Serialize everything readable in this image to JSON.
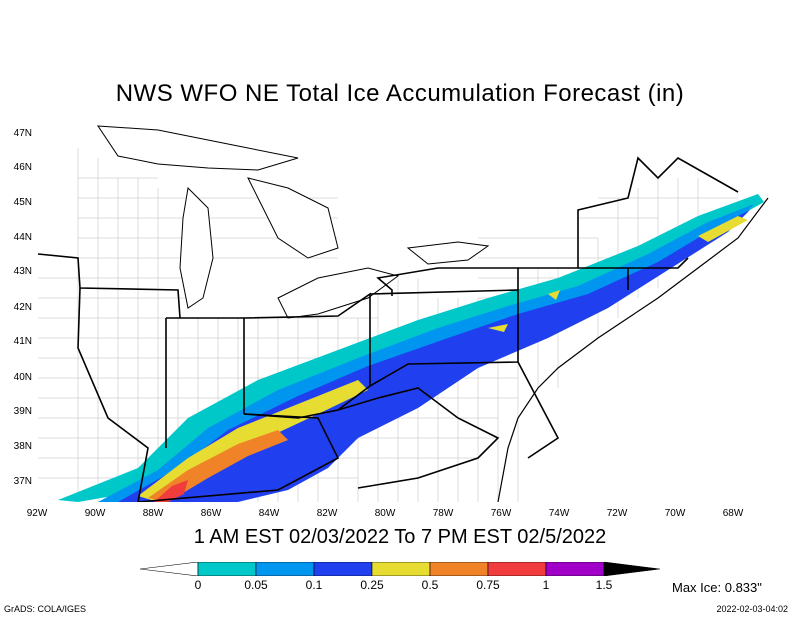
{
  "title": "NWS WFO NE Total Ice Accumulation Forecast (in)",
  "date_range": "1 AM EST 02/03/2022 To 7 PM EST 02/5/2022",
  "lat_labels": [
    "47N",
    "46N",
    "45N",
    "44N",
    "43N",
    "42N",
    "41N",
    "40N",
    "39N",
    "38N",
    "37N"
  ],
  "lon_labels": [
    "92W",
    "90W",
    "88W",
    "86W",
    "84W",
    "82W",
    "80W",
    "78W",
    "76W",
    "74W",
    "72W",
    "70W",
    "68W"
  ],
  "legend": {
    "labels": [
      "0",
      "0.05",
      "0.1",
      "0.25",
      "0.5",
      "0.75",
      "1",
      "1.5"
    ],
    "colors": [
      "#ffffff",
      "#00c8c8",
      "#0096f0",
      "#2040f0",
      "#e6dc32",
      "#f08228",
      "#f03c3c",
      "#a000c8",
      "#000000"
    ]
  },
  "max_ice": "Max Ice: 0.833\"",
  "credit": "GrADS: COLA/IGES",
  "timestamp": "2022-02-03-04:02"
}
